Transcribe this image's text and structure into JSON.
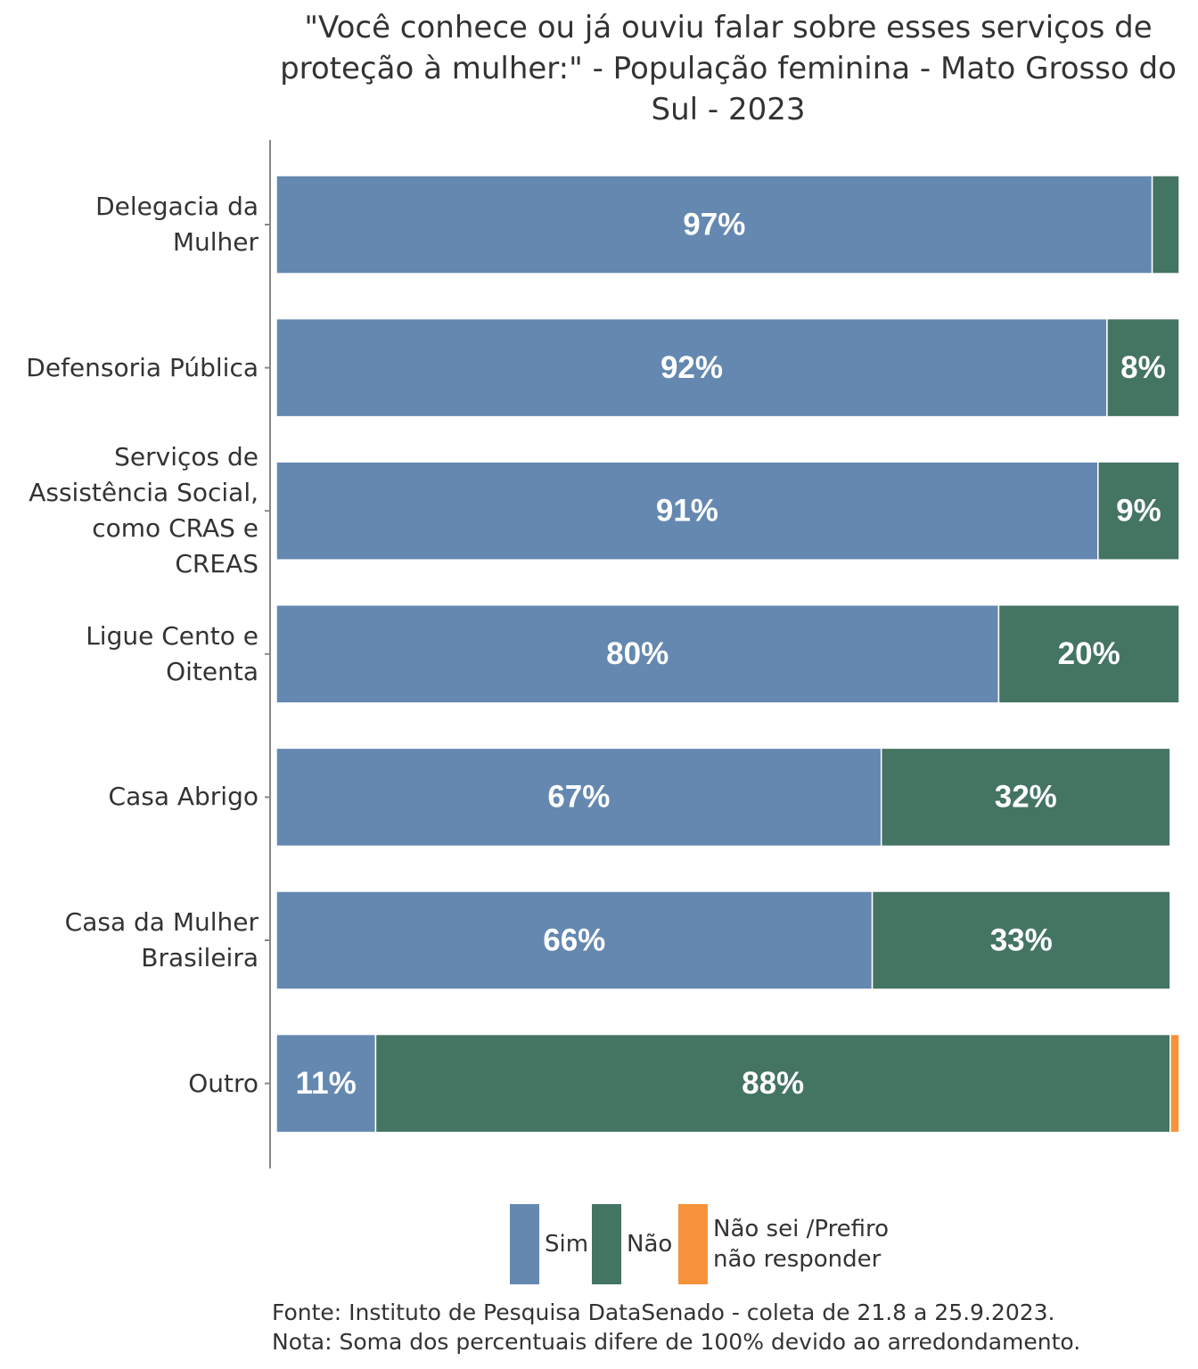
{
  "chart_data": {
    "type": "bar",
    "orientation": "horizontal",
    "stacked": true,
    "title": "\"Você conhece ou já ouviu falar sobre esses serviços de proteção à mulher:\" - População feminina - Mato Grosso do Sul - 2023",
    "categories": [
      "Delegacia da Mulher",
      "Defensoria Pública",
      "Serviços de Assistência Social, como CRAS e CREAS",
      "Ligue Cento e Oitenta",
      "Casa Abrigo",
      "Casa da Mulher Brasileira",
      "Outro"
    ],
    "series": [
      {
        "name": "Sim",
        "color": "#6488b0",
        "values": [
          97,
          92,
          91,
          80,
          67,
          66,
          11
        ],
        "value_labels": [
          "97%",
          "92%",
          "91%",
          "80%",
          "67%",
          "66%",
          "11%"
        ]
      },
      {
        "name": "Não",
        "color": "#447462",
        "values": [
          3,
          8,
          9,
          20,
          32,
          33,
          88
        ],
        "value_labels": [
          null,
          "8%",
          "9%",
          "20%",
          "32%",
          "33%",
          "88%"
        ]
      },
      {
        "name": "Não sei /Prefiro não responder",
        "color": "#f7923a",
        "values": [
          0,
          0,
          0,
          0,
          0,
          0,
          1
        ],
        "value_labels": [
          null,
          null,
          null,
          null,
          null,
          null,
          null
        ]
      }
    ],
    "xlim": [
      0,
      100
    ],
    "legend": "bottom",
    "source": "Fonte: Instituto de Pesquisa DataSenado - coleta de 21.8 a 25.9.2023.",
    "note": "Nota: Soma dos percentuais difere de 100% devido ao arredondamento."
  }
}
